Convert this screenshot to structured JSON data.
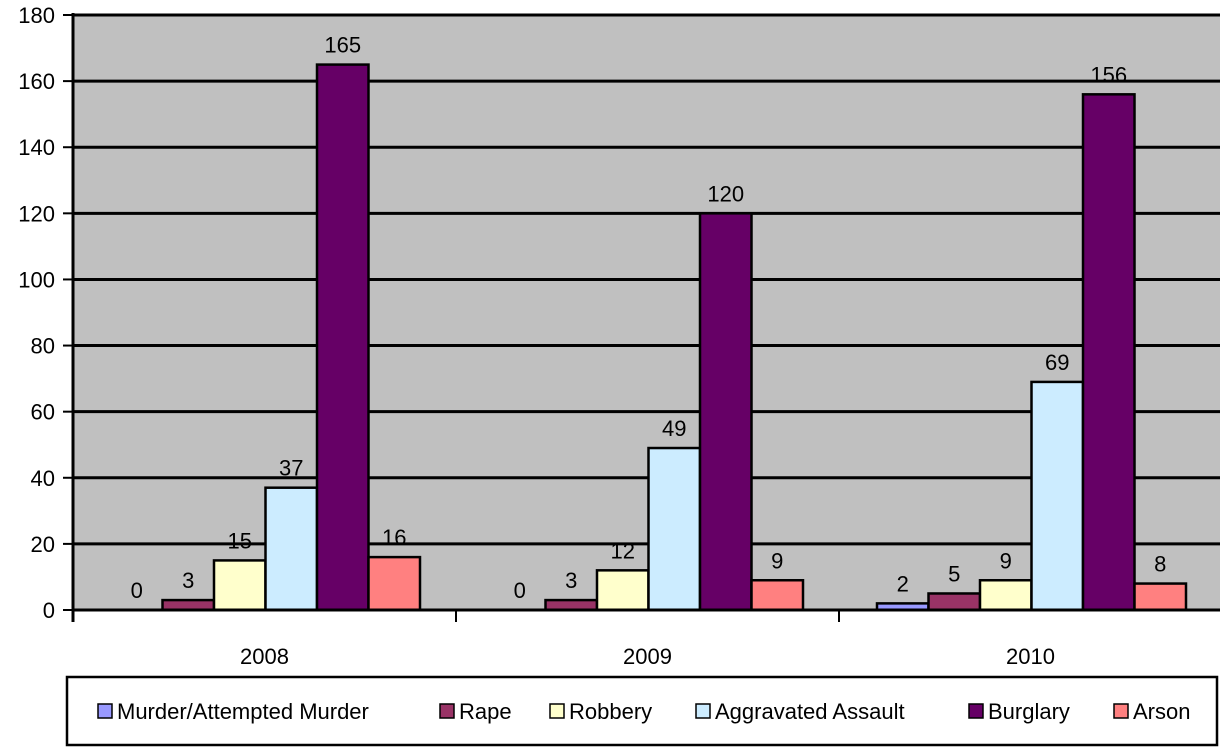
{
  "chart_data": {
    "type": "bar",
    "title": "",
    "xlabel": "",
    "ylabel": "",
    "categories": [
      "2008",
      "2009",
      "2010"
    ],
    "ylim": [
      0,
      180
    ],
    "yticks": [
      "0",
      "20",
      "40",
      "60",
      "80",
      "100",
      "120",
      "140",
      "160",
      "180"
    ],
    "grid": true,
    "legend_position": "bottom",
    "background_color": "#c0c0c0",
    "series": [
      {
        "name": "Murder/Attempted Murder",
        "color": "#9999ff",
        "values": [
          0,
          0,
          2
        ]
      },
      {
        "name": "Rape",
        "color": "#993366",
        "values": [
          3,
          3,
          5
        ]
      },
      {
        "name": "Robbery",
        "color": "#ffffcc",
        "values": [
          15,
          12,
          9
        ]
      },
      {
        "name": "Aggravated Assault",
        "color": "#ccecff",
        "values": [
          37,
          49,
          69
        ]
      },
      {
        "name": "Burglary",
        "color": "#660066",
        "values": [
          165,
          120,
          156
        ]
      },
      {
        "name": "Arson",
        "color": "#ff8080",
        "values": [
          16,
          9,
          8
        ]
      }
    ]
  }
}
